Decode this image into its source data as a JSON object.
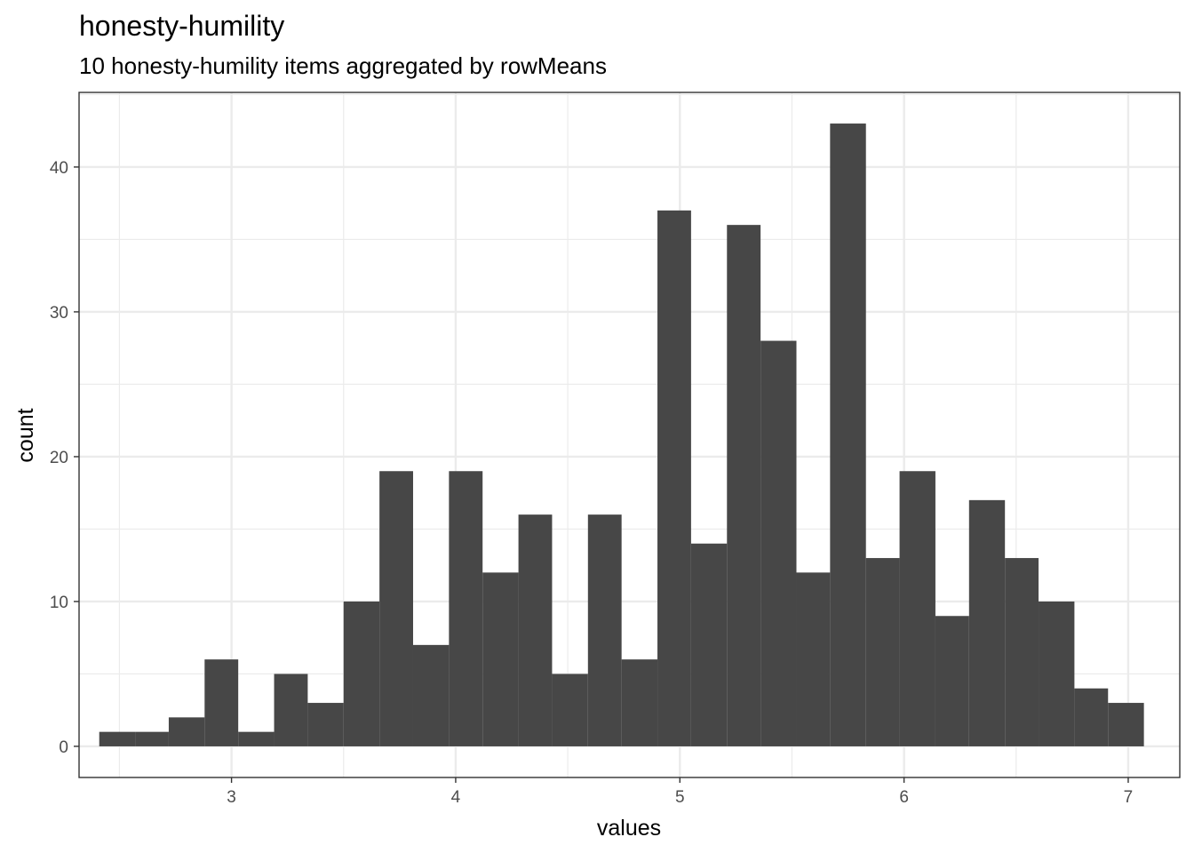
{
  "chart_data": {
    "type": "bar",
    "title": "honesty-humility",
    "subtitle": "10 honesty-humility items aggregated by rowMeans",
    "xlabel": "values",
    "ylabel": "count",
    "xlim": [
      2.32,
      7.23
    ],
    "ylim": [
      -2.15,
      45.15
    ],
    "x_ticks": [
      3,
      4,
      5,
      6,
      7
    ],
    "x_tick_labels": [
      "3",
      "4",
      "5",
      "6",
      "7"
    ],
    "y_ticks": [
      0,
      10,
      20,
      30,
      40
    ],
    "y_tick_labels": [
      "0",
      "10",
      "20",
      "30",
      "40"
    ],
    "grid": true,
    "bar_color": "#474747",
    "bins": [
      {
        "x0": 2.41,
        "x1": 2.57,
        "count": 1
      },
      {
        "x0": 2.57,
        "x1": 2.72,
        "count": 1
      },
      {
        "x0": 2.72,
        "x1": 2.88,
        "count": 2
      },
      {
        "x0": 2.88,
        "x1": 3.03,
        "count": 6
      },
      {
        "x0": 3.03,
        "x1": 3.19,
        "count": 1
      },
      {
        "x0": 3.19,
        "x1": 3.34,
        "count": 5
      },
      {
        "x0": 3.34,
        "x1": 3.5,
        "count": 3
      },
      {
        "x0": 3.5,
        "x1": 3.66,
        "count": 10
      },
      {
        "x0": 3.66,
        "x1": 3.81,
        "count": 19
      },
      {
        "x0": 3.81,
        "x1": 3.97,
        "count": 7
      },
      {
        "x0": 3.97,
        "x1": 4.12,
        "count": 19
      },
      {
        "x0": 4.12,
        "x1": 4.28,
        "count": 12
      },
      {
        "x0": 4.28,
        "x1": 4.43,
        "count": 16
      },
      {
        "x0": 4.43,
        "x1": 4.59,
        "count": 5
      },
      {
        "x0": 4.59,
        "x1": 4.74,
        "count": 16
      },
      {
        "x0": 4.74,
        "x1": 4.9,
        "count": 6
      },
      {
        "x0": 4.9,
        "x1": 5.05,
        "count": 37
      },
      {
        "x0": 5.05,
        "x1": 5.21,
        "count": 14
      },
      {
        "x0": 5.21,
        "x1": 5.36,
        "count": 36
      },
      {
        "x0": 5.36,
        "x1": 5.52,
        "count": 28
      },
      {
        "x0": 5.52,
        "x1": 5.67,
        "count": 12
      },
      {
        "x0": 5.67,
        "x1": 5.83,
        "count": 43
      },
      {
        "x0": 5.83,
        "x1": 5.98,
        "count": 13
      },
      {
        "x0": 5.98,
        "x1": 6.14,
        "count": 19
      },
      {
        "x0": 6.14,
        "x1": 6.29,
        "count": 9
      },
      {
        "x0": 6.29,
        "x1": 6.45,
        "count": 17
      },
      {
        "x0": 6.45,
        "x1": 6.6,
        "count": 13
      },
      {
        "x0": 6.6,
        "x1": 6.76,
        "count": 10
      },
      {
        "x0": 6.76,
        "x1": 6.91,
        "count": 4
      },
      {
        "x0": 6.91,
        "x1": 7.07,
        "count": 3
      }
    ]
  }
}
